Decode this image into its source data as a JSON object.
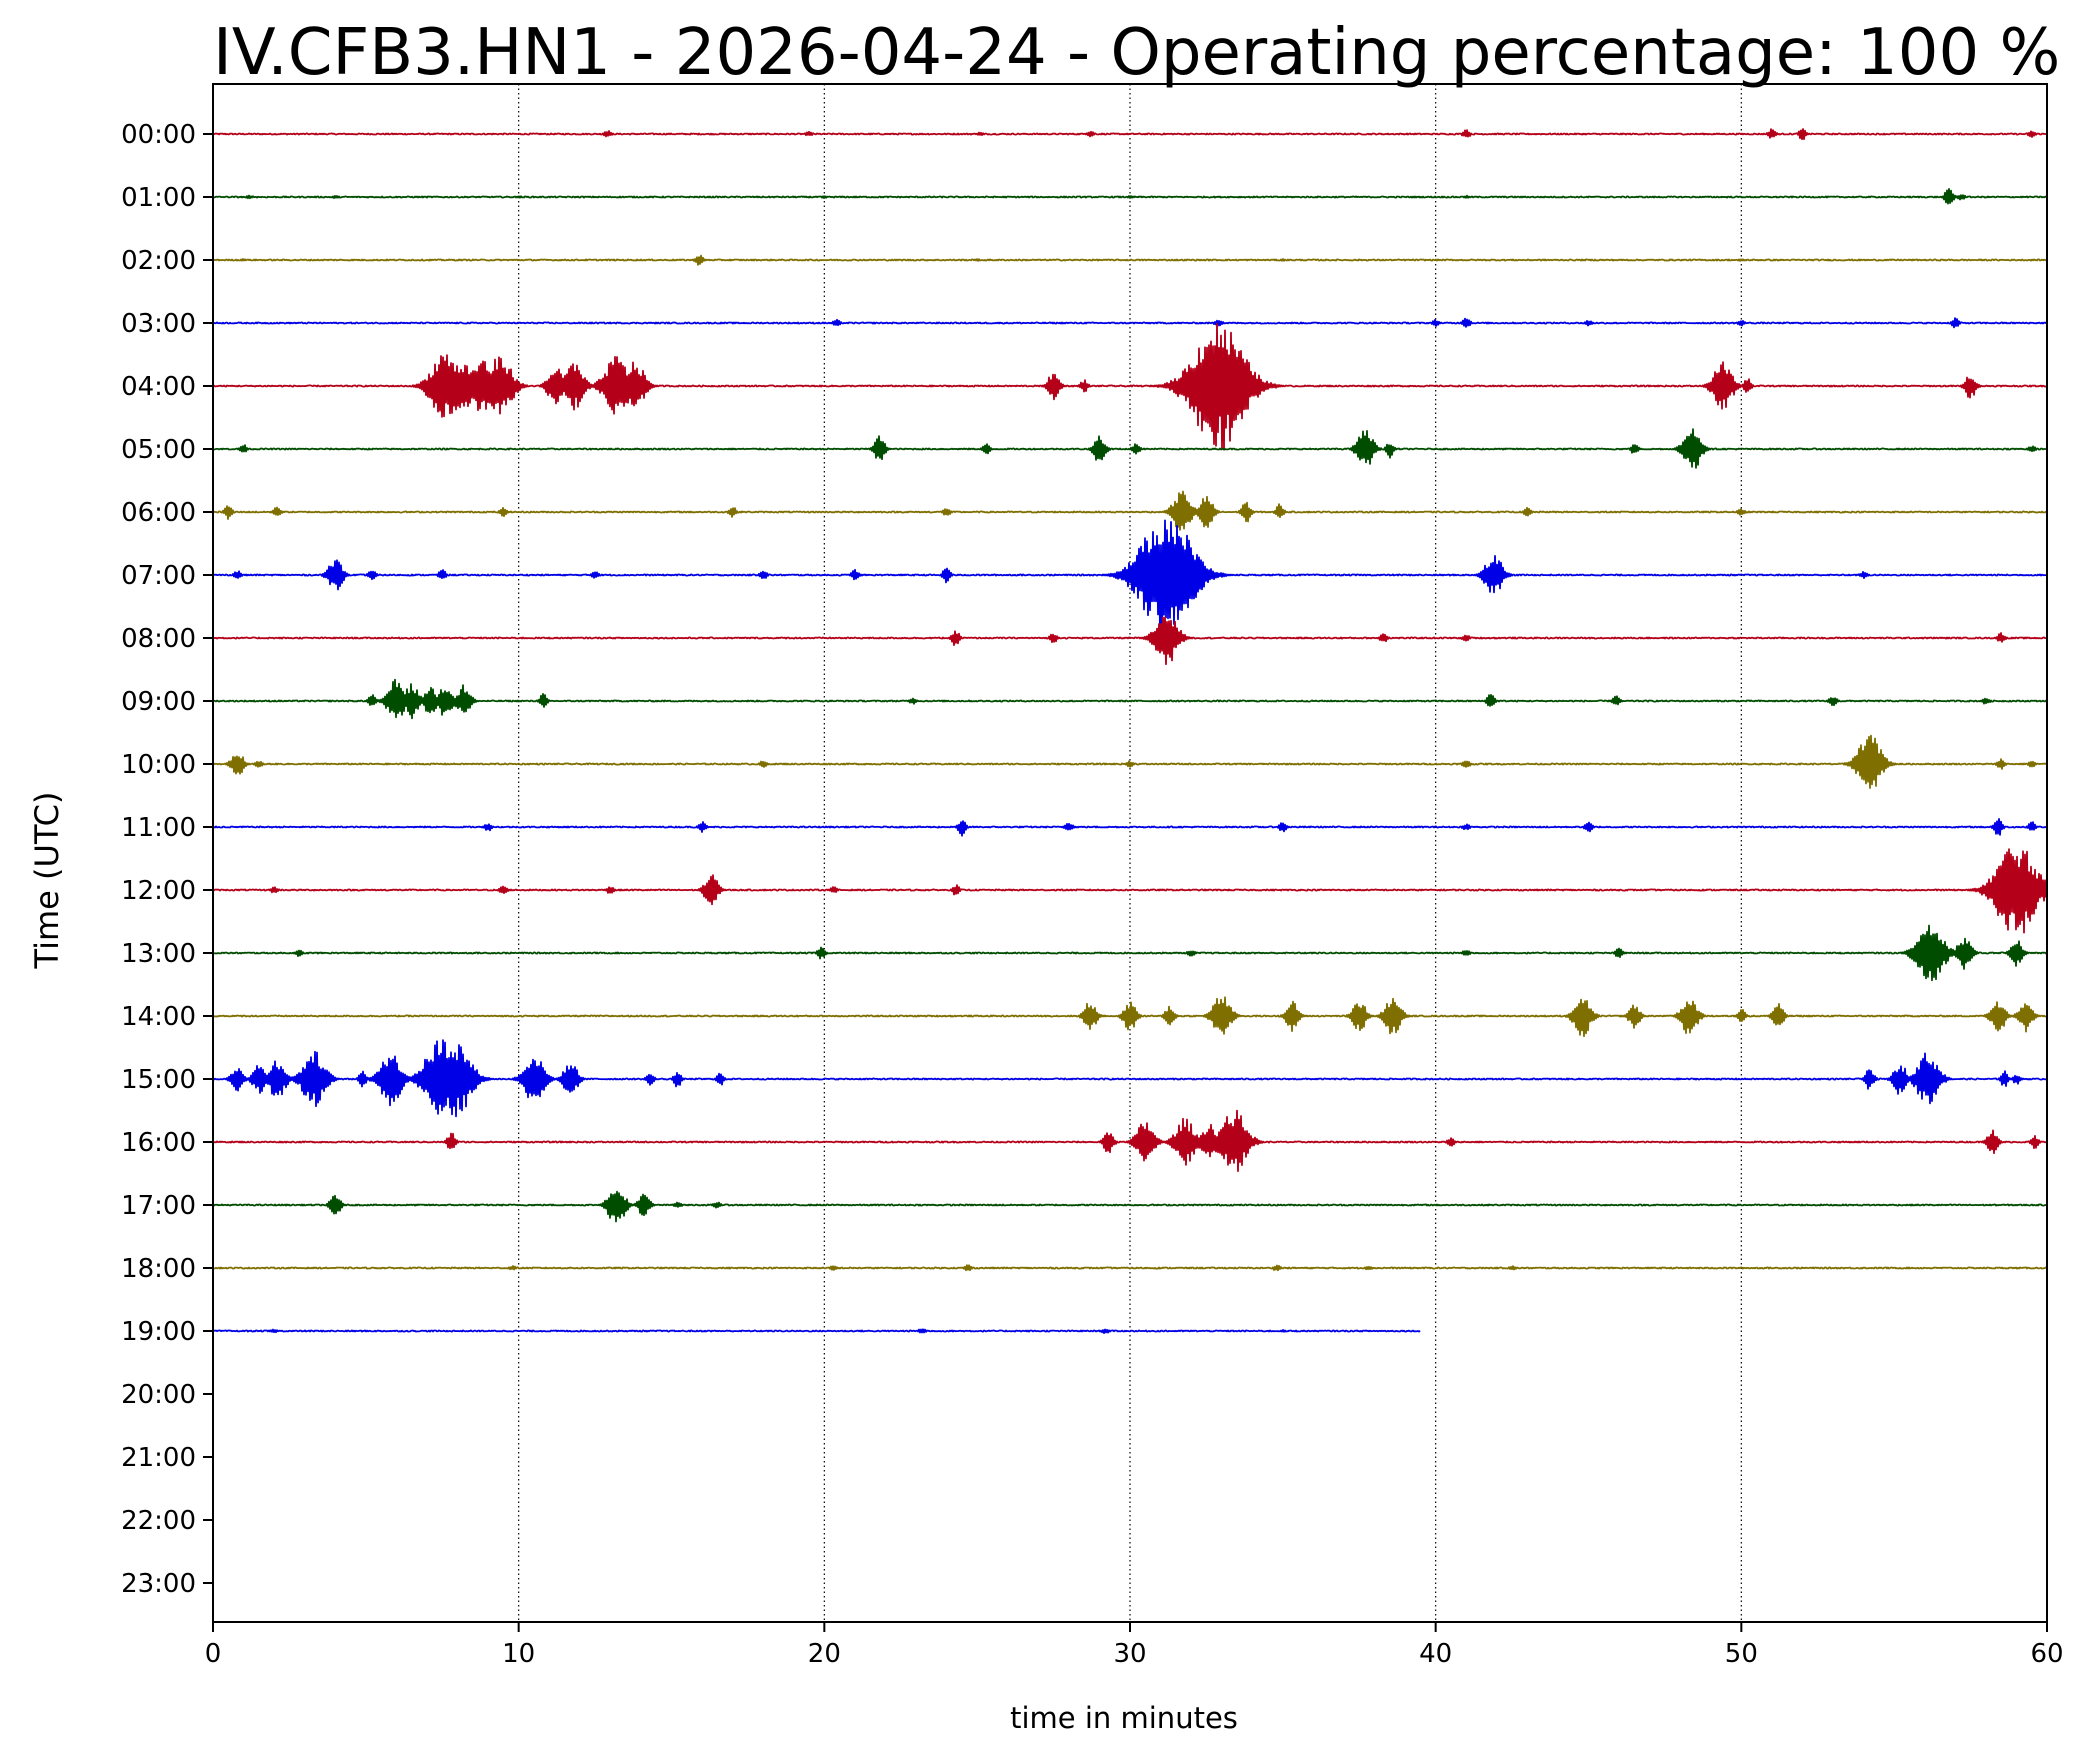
{
  "chart_data": {
    "type": "line",
    "title": "IV.CFB3.HN1 - 2026-04-24 - Operating percentage: 100 %",
    "xlabel": "time in minutes",
    "ylabel": "Time (UTC)",
    "xlim": [
      0,
      60
    ],
    "x_ticks": [
      0,
      10,
      20,
      30,
      40,
      50,
      60
    ],
    "y_tick_labels": [
      "00:00",
      "01:00",
      "02:00",
      "03:00",
      "04:00",
      "05:00",
      "06:00",
      "07:00",
      "08:00",
      "09:00",
      "10:00",
      "11:00",
      "12:00",
      "13:00",
      "14:00",
      "15:00",
      "16:00",
      "17:00",
      "18:00",
      "19:00",
      "20:00",
      "21:00",
      "22:00",
      "23:00"
    ],
    "grid": "vertical dotted lines at x ticks",
    "color_cycle": [
      "#b5001a",
      "#004d00",
      "#7f6f00",
      "#0000e6"
    ],
    "series": [
      {
        "label": "00:00",
        "end_min": 60,
        "events": [
          [
            12.9,
            0.35
          ],
          [
            19.5,
            0.2
          ],
          [
            25.1,
            0.15
          ],
          [
            28.7,
            0.3
          ],
          [
            41,
            0.45
          ],
          [
            51,
            0.5
          ],
          [
            52,
            0.55
          ],
          [
            59.5,
            0.3
          ]
        ]
      },
      {
        "label": "01:00",
        "end_min": 60,
        "events": [
          [
            1.2,
            0.15
          ],
          [
            4,
            0.12
          ],
          [
            10,
            0.1
          ],
          [
            20,
            0.1
          ],
          [
            30,
            0.1
          ],
          [
            41,
            0.12
          ],
          [
            56.8,
            0.9
          ],
          [
            57.2,
            0.3
          ]
        ]
      },
      {
        "label": "02:00",
        "end_min": 60,
        "events": [
          [
            1,
            0.1
          ],
          [
            15.9,
            0.55
          ],
          [
            25,
            0.1
          ],
          [
            35,
            0.1
          ],
          [
            50,
            0.1
          ]
        ]
      },
      {
        "label": "03:00",
        "end_min": 60,
        "events": [
          [
            20.4,
            0.3
          ],
          [
            32.9,
            0.4
          ],
          [
            40,
            0.3
          ],
          [
            41,
            0.6
          ],
          [
            45,
            0.25
          ],
          [
            50,
            0.25
          ],
          [
            57,
            0.5
          ]
        ]
      },
      {
        "label": "04:00",
        "end_min": 60,
        "events": [
          [
            7.6,
            3.3
          ],
          [
            8.2,
            2.2
          ],
          [
            8.8,
            2.6
          ],
          [
            9.4,
            2.8
          ],
          [
            11.2,
            1.8
          ],
          [
            11.8,
            2.2
          ],
          [
            13.2,
            2.8
          ],
          [
            13.8,
            2.3
          ],
          [
            27.5,
            1.3
          ],
          [
            28.5,
            0.6
          ],
          [
            32.9,
            6.0
          ],
          [
            49.4,
            2.2
          ],
          [
            50.2,
            0.8
          ],
          [
            57.5,
            1.2
          ]
        ]
      },
      {
        "label": "05:00",
        "end_min": 60,
        "events": [
          [
            1,
            0.4
          ],
          [
            21.8,
            1.2
          ],
          [
            25.3,
            0.5
          ],
          [
            29,
            1.3
          ],
          [
            30.2,
            0.6
          ],
          [
            37.7,
            1.8
          ],
          [
            38.5,
            0.8
          ],
          [
            46.5,
            0.5
          ],
          [
            48.4,
            2.0
          ],
          [
            59.5,
            0.3
          ]
        ]
      },
      {
        "label": "06:00",
        "end_min": 60,
        "events": [
          [
            0.5,
            0.7
          ],
          [
            2.1,
            0.5
          ],
          [
            9.5,
            0.4
          ],
          [
            17,
            0.5
          ],
          [
            24,
            0.4
          ],
          [
            31.7,
            2.0
          ],
          [
            32.5,
            1.5
          ],
          [
            33.8,
            1.0
          ],
          [
            34.9,
            0.8
          ],
          [
            43,
            0.4
          ],
          [
            50,
            0.3
          ]
        ]
      },
      {
        "label": "07:00",
        "end_min": 60,
        "events": [
          [
            0.8,
            0.4
          ],
          [
            4,
            1.6
          ],
          [
            5.2,
            0.5
          ],
          [
            7.5,
            0.5
          ],
          [
            12.5,
            0.4
          ],
          [
            18,
            0.5
          ],
          [
            21,
            0.5
          ],
          [
            24,
            0.8
          ],
          [
            31.2,
            5.9
          ],
          [
            41.9,
            2.0
          ],
          [
            54,
            0.3
          ]
        ]
      },
      {
        "label": "08:00",
        "end_min": 60,
        "events": [
          [
            24.3,
            0.8
          ],
          [
            27.5,
            0.5
          ],
          [
            31.2,
            2.5
          ],
          [
            38.3,
            0.5
          ],
          [
            41,
            0.3
          ],
          [
            58.5,
            0.5
          ]
        ]
      },
      {
        "label": "09:00",
        "end_min": 60,
        "events": [
          [
            5.2,
            0.6
          ],
          [
            6,
            2.0
          ],
          [
            6.5,
            1.6
          ],
          [
            7.1,
            1.4
          ],
          [
            7.6,
            1.6
          ],
          [
            8.2,
            1.5
          ],
          [
            10.8,
            0.7
          ],
          [
            22.9,
            0.3
          ],
          [
            41.8,
            0.8
          ],
          [
            45.9,
            0.5
          ],
          [
            53,
            0.5
          ],
          [
            58,
            0.3
          ]
        ]
      },
      {
        "label": "10:00",
        "end_min": 60,
        "events": [
          [
            0.8,
            1.3
          ],
          [
            1.5,
            0.3
          ],
          [
            18,
            0.3
          ],
          [
            30,
            0.3
          ],
          [
            41,
            0.4
          ],
          [
            54.2,
            2.7
          ],
          [
            58.5,
            0.5
          ],
          [
            59.5,
            0.3
          ]
        ]
      },
      {
        "label": "11:00",
        "end_min": 60,
        "events": [
          [
            9,
            0.4
          ],
          [
            16,
            0.5
          ],
          [
            24.5,
            0.8
          ],
          [
            28,
            0.5
          ],
          [
            35,
            0.5
          ],
          [
            41,
            0.3
          ],
          [
            45,
            0.5
          ],
          [
            58.4,
            0.9
          ],
          [
            59.5,
            0.5
          ]
        ]
      },
      {
        "label": "12:00",
        "end_min": 60,
        "events": [
          [
            2,
            0.3
          ],
          [
            9.5,
            0.4
          ],
          [
            13,
            0.4
          ],
          [
            16.3,
            1.5
          ],
          [
            20.3,
            0.3
          ],
          [
            24.3,
            0.5
          ],
          [
            59,
            4.5
          ]
        ]
      },
      {
        "label": "13:00",
        "end_min": 60,
        "events": [
          [
            2.8,
            0.3
          ],
          [
            19.9,
            0.6
          ],
          [
            32,
            0.3
          ],
          [
            41,
            0.3
          ],
          [
            46,
            0.5
          ],
          [
            56.2,
            3.0
          ],
          [
            57.3,
            1.6
          ],
          [
            59,
            1.3
          ]
        ]
      },
      {
        "label": "14:00",
        "end_min": 60,
        "events": [
          [
            28.7,
            1.4
          ],
          [
            30,
            1.4
          ],
          [
            31.3,
            1.0
          ],
          [
            33,
            2.0
          ],
          [
            35.3,
            1.4
          ],
          [
            37.5,
            1.5
          ],
          [
            38.6,
            1.8
          ],
          [
            44.8,
            1.9
          ],
          [
            46.5,
            1.2
          ],
          [
            48.3,
            1.8
          ],
          [
            50,
            0.8
          ],
          [
            51.2,
            1.2
          ],
          [
            58.4,
            1.6
          ],
          [
            59.3,
            1.5
          ]
        ]
      },
      {
        "label": "15:00",
        "end_min": 60,
        "events": [
          [
            0.8,
            1.3
          ],
          [
            1.5,
            1.4
          ],
          [
            2.1,
            1.9
          ],
          [
            3.3,
            2.6
          ],
          [
            4.9,
            0.8
          ],
          [
            5.8,
            2.5
          ],
          [
            7,
            1.6
          ],
          [
            7.5,
            3.9
          ],
          [
            7.9,
            3.7
          ],
          [
            10.5,
            2.3
          ],
          [
            11.7,
            1.6
          ],
          [
            14.3,
            0.6
          ],
          [
            15.2,
            0.8
          ],
          [
            16.6,
            0.6
          ],
          [
            54.2,
            1.0
          ],
          [
            55.2,
            1.5
          ],
          [
            56.1,
            2.5
          ],
          [
            58.6,
            0.8
          ],
          [
            59,
            0.5
          ]
        ]
      },
      {
        "label": "16:00",
        "end_min": 60,
        "events": [
          [
            7.8,
            0.9
          ],
          [
            29.3,
            1.1
          ],
          [
            30.5,
            2.0
          ],
          [
            31.8,
            2.2
          ],
          [
            32.6,
            1.8
          ],
          [
            33.4,
            3.0
          ],
          [
            40.5,
            0.4
          ],
          [
            58.2,
            1.2
          ],
          [
            59.6,
            0.6
          ]
        ]
      },
      {
        "label": "17:00",
        "end_min": 60,
        "events": [
          [
            4,
            1.1
          ],
          [
            13.2,
            1.9
          ],
          [
            14.1,
            1.2
          ],
          [
            15.2,
            0.3
          ],
          [
            16.5,
            0.3
          ]
        ]
      },
      {
        "label": "18:00",
        "end_min": 60,
        "events": [
          [
            9.8,
            0.2
          ],
          [
            20.3,
            0.2
          ],
          [
            24.7,
            0.3
          ],
          [
            34.8,
            0.3
          ],
          [
            37.8,
            0.2
          ],
          [
            42.5,
            0.2
          ]
        ]
      },
      {
        "label": "19:00",
        "end_min": 39.5,
        "events": [
          [
            2,
            0.15
          ],
          [
            23.2,
            0.25
          ],
          [
            29.2,
            0.25
          ],
          [
            35,
            0.1
          ]
        ]
      },
      {
        "label": "20:00",
        "end_min": 0,
        "events": []
      },
      {
        "label": "21:00",
        "end_min": 0,
        "events": []
      },
      {
        "label": "22:00",
        "end_min": 0,
        "events": []
      },
      {
        "label": "23:00",
        "end_min": 0,
        "events": []
      }
    ]
  }
}
